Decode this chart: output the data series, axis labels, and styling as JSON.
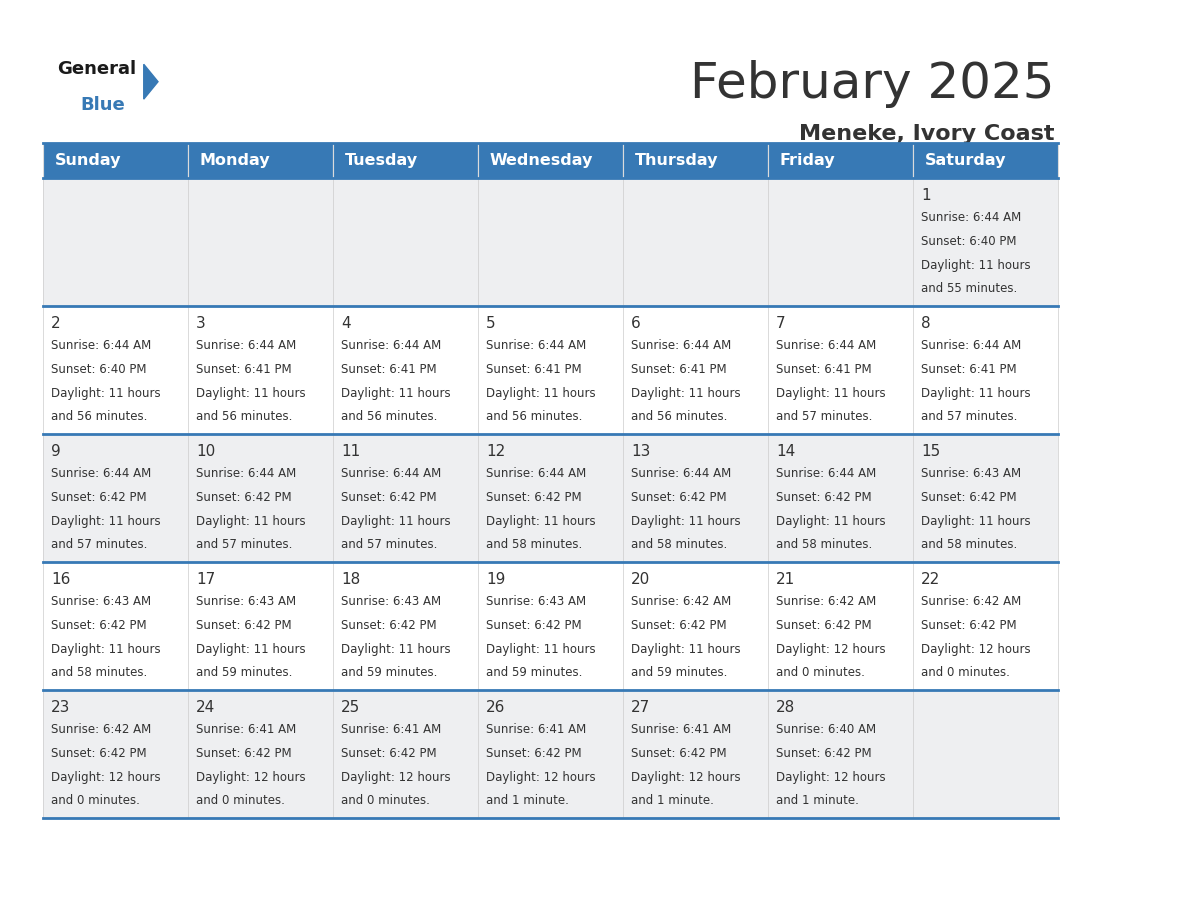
{
  "title": "February 2025",
  "subtitle": "Meneke, Ivory Coast",
  "header_color": "#3779b5",
  "header_text_color": "#ffffff",
  "border_color": "#3779b5",
  "days_of_week": [
    "Sunday",
    "Monday",
    "Tuesday",
    "Wednesday",
    "Thursday",
    "Friday",
    "Saturday"
  ],
  "row_bg_colors": [
    "#eeeff1",
    "#ffffff",
    "#eeeff1",
    "#ffffff",
    "#eeeff1"
  ],
  "weeks": [
    [
      {
        "day": "",
        "info": ""
      },
      {
        "day": "",
        "info": ""
      },
      {
        "day": "",
        "info": ""
      },
      {
        "day": "",
        "info": ""
      },
      {
        "day": "",
        "info": ""
      },
      {
        "day": "",
        "info": ""
      },
      {
        "day": "1",
        "info": "Sunrise: 6:44 AM\nSunset: 6:40 PM\nDaylight: 11 hours\nand 55 minutes."
      }
    ],
    [
      {
        "day": "2",
        "info": "Sunrise: 6:44 AM\nSunset: 6:40 PM\nDaylight: 11 hours\nand 56 minutes."
      },
      {
        "day": "3",
        "info": "Sunrise: 6:44 AM\nSunset: 6:41 PM\nDaylight: 11 hours\nand 56 minutes."
      },
      {
        "day": "4",
        "info": "Sunrise: 6:44 AM\nSunset: 6:41 PM\nDaylight: 11 hours\nand 56 minutes."
      },
      {
        "day": "5",
        "info": "Sunrise: 6:44 AM\nSunset: 6:41 PM\nDaylight: 11 hours\nand 56 minutes."
      },
      {
        "day": "6",
        "info": "Sunrise: 6:44 AM\nSunset: 6:41 PM\nDaylight: 11 hours\nand 56 minutes."
      },
      {
        "day": "7",
        "info": "Sunrise: 6:44 AM\nSunset: 6:41 PM\nDaylight: 11 hours\nand 57 minutes."
      },
      {
        "day": "8",
        "info": "Sunrise: 6:44 AM\nSunset: 6:41 PM\nDaylight: 11 hours\nand 57 minutes."
      }
    ],
    [
      {
        "day": "9",
        "info": "Sunrise: 6:44 AM\nSunset: 6:42 PM\nDaylight: 11 hours\nand 57 minutes."
      },
      {
        "day": "10",
        "info": "Sunrise: 6:44 AM\nSunset: 6:42 PM\nDaylight: 11 hours\nand 57 minutes."
      },
      {
        "day": "11",
        "info": "Sunrise: 6:44 AM\nSunset: 6:42 PM\nDaylight: 11 hours\nand 57 minutes."
      },
      {
        "day": "12",
        "info": "Sunrise: 6:44 AM\nSunset: 6:42 PM\nDaylight: 11 hours\nand 58 minutes."
      },
      {
        "day": "13",
        "info": "Sunrise: 6:44 AM\nSunset: 6:42 PM\nDaylight: 11 hours\nand 58 minutes."
      },
      {
        "day": "14",
        "info": "Sunrise: 6:44 AM\nSunset: 6:42 PM\nDaylight: 11 hours\nand 58 minutes."
      },
      {
        "day": "15",
        "info": "Sunrise: 6:43 AM\nSunset: 6:42 PM\nDaylight: 11 hours\nand 58 minutes."
      }
    ],
    [
      {
        "day": "16",
        "info": "Sunrise: 6:43 AM\nSunset: 6:42 PM\nDaylight: 11 hours\nand 58 minutes."
      },
      {
        "day": "17",
        "info": "Sunrise: 6:43 AM\nSunset: 6:42 PM\nDaylight: 11 hours\nand 59 minutes."
      },
      {
        "day": "18",
        "info": "Sunrise: 6:43 AM\nSunset: 6:42 PM\nDaylight: 11 hours\nand 59 minutes."
      },
      {
        "day": "19",
        "info": "Sunrise: 6:43 AM\nSunset: 6:42 PM\nDaylight: 11 hours\nand 59 minutes."
      },
      {
        "day": "20",
        "info": "Sunrise: 6:42 AM\nSunset: 6:42 PM\nDaylight: 11 hours\nand 59 minutes."
      },
      {
        "day": "21",
        "info": "Sunrise: 6:42 AM\nSunset: 6:42 PM\nDaylight: 12 hours\nand 0 minutes."
      },
      {
        "day": "22",
        "info": "Sunrise: 6:42 AM\nSunset: 6:42 PM\nDaylight: 12 hours\nand 0 minutes."
      }
    ],
    [
      {
        "day": "23",
        "info": "Sunrise: 6:42 AM\nSunset: 6:42 PM\nDaylight: 12 hours\nand 0 minutes."
      },
      {
        "day": "24",
        "info": "Sunrise: 6:41 AM\nSunset: 6:42 PM\nDaylight: 12 hours\nand 0 minutes."
      },
      {
        "day": "25",
        "info": "Sunrise: 6:41 AM\nSunset: 6:42 PM\nDaylight: 12 hours\nand 0 minutes."
      },
      {
        "day": "26",
        "info": "Sunrise: 6:41 AM\nSunset: 6:42 PM\nDaylight: 12 hours\nand 1 minute."
      },
      {
        "day": "27",
        "info": "Sunrise: 6:41 AM\nSunset: 6:42 PM\nDaylight: 12 hours\nand 1 minute."
      },
      {
        "day": "28",
        "info": "Sunrise: 6:40 AM\nSunset: 6:42 PM\nDaylight: 12 hours\nand 1 minute."
      },
      {
        "day": "",
        "info": ""
      }
    ]
  ],
  "bg_color": "#ffffff",
  "text_color": "#333333",
  "day_num_color": "#333333",
  "info_font_size": 8.5,
  "day_font_size": 11,
  "header_font_size": 11.5,
  "title_fontsize": 36,
  "subtitle_fontsize": 16
}
